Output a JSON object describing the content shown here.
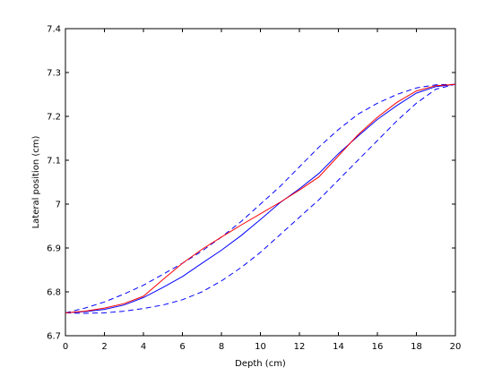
{
  "chart_data": {
    "type": "line",
    "title": "",
    "xlabel": "Depth (cm)",
    "ylabel": "Lateral position (cm)",
    "xlim": [
      0,
      20
    ],
    "ylim": [
      6.7,
      7.4
    ],
    "xticks": [
      0,
      2,
      4,
      6,
      8,
      10,
      12,
      14,
      16,
      18,
      20
    ],
    "yticks": [
      6.7,
      6.8,
      6.9,
      7.0,
      7.1,
      7.2,
      7.3,
      7.4
    ],
    "xtick_labels": [
      "0",
      "2",
      "4",
      "6",
      "8",
      "10",
      "12",
      "14",
      "16",
      "18",
      "20"
    ],
    "ytick_labels": [
      "6.7",
      "6.8",
      "6.9",
      "7",
      "7.1",
      "7.2",
      "7.3",
      "7.4"
    ],
    "grid": false,
    "legend": "none",
    "series": [
      {
        "color": "#0000ff",
        "style": "dashed",
        "x": [
          0,
          1,
          2,
          3,
          4,
          5,
          6,
          7,
          8,
          9,
          10,
          11,
          12,
          13,
          14,
          15,
          16,
          17,
          18,
          19,
          20
        ],
        "y": [
          6.752,
          6.763,
          6.777,
          6.795,
          6.815,
          6.84,
          6.865,
          6.893,
          6.925,
          6.96,
          7.0,
          7.04,
          7.085,
          7.13,
          7.17,
          7.205,
          7.23,
          7.25,
          7.265,
          7.272,
          7.273
        ]
      },
      {
        "color": "#0000ff",
        "style": "dashed",
        "x": [
          0,
          1,
          2,
          3,
          4,
          5,
          6,
          7,
          8,
          9,
          10,
          11,
          12,
          13,
          14,
          15,
          16,
          17,
          18,
          19,
          20
        ],
        "y": [
          6.752,
          6.751,
          6.752,
          6.756,
          6.762,
          6.77,
          6.782,
          6.8,
          6.825,
          6.855,
          6.89,
          6.93,
          6.97,
          7.01,
          7.055,
          7.1,
          7.145,
          7.19,
          7.23,
          7.262,
          7.273
        ]
      },
      {
        "color": "#0000ff",
        "style": "solid",
        "x": [
          0,
          1,
          2,
          3,
          4,
          5,
          6,
          7,
          8,
          9,
          10,
          11,
          12,
          13,
          14,
          15,
          16,
          17,
          18,
          19,
          20
        ],
        "y": [
          6.752,
          6.755,
          6.76,
          6.77,
          6.787,
          6.81,
          6.835,
          6.865,
          6.895,
          6.928,
          6.965,
          7.003,
          7.035,
          7.07,
          7.115,
          7.155,
          7.193,
          7.225,
          7.253,
          7.268,
          7.273
        ]
      },
      {
        "color": "#ff0000",
        "style": "solid",
        "x": [
          0,
          1,
          2,
          3,
          4,
          5,
          6,
          7,
          8,
          9,
          10,
          11,
          12,
          13,
          14,
          15,
          16,
          17,
          18,
          19,
          20
        ],
        "y": [
          6.752,
          6.756,
          6.763,
          6.773,
          6.79,
          6.828,
          6.865,
          6.897,
          6.925,
          6.952,
          6.978,
          7.004,
          7.032,
          7.062,
          7.11,
          7.158,
          7.198,
          7.232,
          7.258,
          7.27,
          7.273
        ]
      }
    ]
  }
}
